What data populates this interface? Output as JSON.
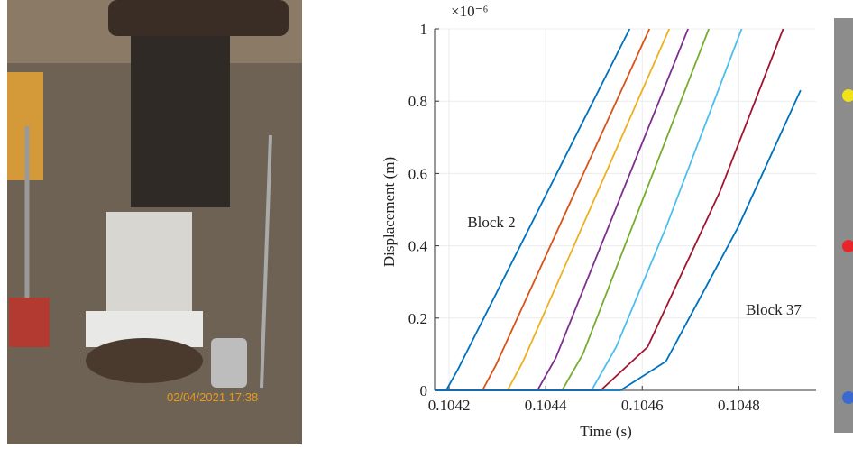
{
  "photo": {
    "timestamp": "02/04/2021 17:38"
  },
  "chart_data": {
    "type": "line",
    "y_multiplier_label": "×10⁻⁶",
    "xlabel": "Time (s)",
    "ylabel": "Displacement (m)",
    "xlim": [
      0.10417,
      0.10496
    ],
    "ylim": [
      0,
      1
    ],
    "xticks": [
      0.1042,
      0.1044,
      0.1046,
      0.1048
    ],
    "yticks": [
      0,
      0.2,
      0.4,
      0.6,
      0.8,
      1
    ],
    "grid": true,
    "annotations": [
      {
        "text": "Block 2"
      },
      {
        "text": "Block 37"
      }
    ],
    "series": [
      {
        "color": "#0072BD",
        "x": [
          0.10417,
          0.104194,
          0.104219,
          0.104574
        ],
        "values": [
          0,
          0,
          0.06,
          1
        ]
      },
      {
        "color": "#D95319",
        "x": [
          0.10417,
          0.104269,
          0.104297,
          0.104615
        ],
        "values": [
          0,
          0,
          0.07,
          1
        ]
      },
      {
        "color": "#EDB120",
        "x": [
          0.10417,
          0.104321,
          0.104353,
          0.104656
        ],
        "values": [
          0,
          0,
          0.08,
          1
        ]
      },
      {
        "color": "#7E2F8E",
        "x": [
          0.10417,
          0.104383,
          0.104421,
          0.104695
        ],
        "values": [
          0,
          0,
          0.09,
          1
        ]
      },
      {
        "color": "#77AC30",
        "x": [
          0.10417,
          0.104434,
          0.104477,
          0.104738
        ],
        "values": [
          0,
          0,
          0.1,
          1
        ]
      },
      {
        "color": "#4DBEEE",
        "x": [
          0.10417,
          0.104495,
          0.104546,
          0.104649,
          0.104806
        ],
        "values": [
          0,
          0,
          0.12,
          0.45,
          1
        ]
      },
      {
        "color": "#A2142F",
        "x": [
          0.10417,
          0.104514,
          0.104611,
          0.104761,
          0.104892
        ],
        "values": [
          0,
          0,
          0.12,
          0.55,
          1
        ]
      },
      {
        "color": "#0072BD",
        "x": [
          0.10417,
          0.104555,
          0.104649,
          0.104798,
          0.104928
        ],
        "values": [
          0,
          0,
          0.08,
          0.45,
          0.83
        ]
      }
    ]
  }
}
